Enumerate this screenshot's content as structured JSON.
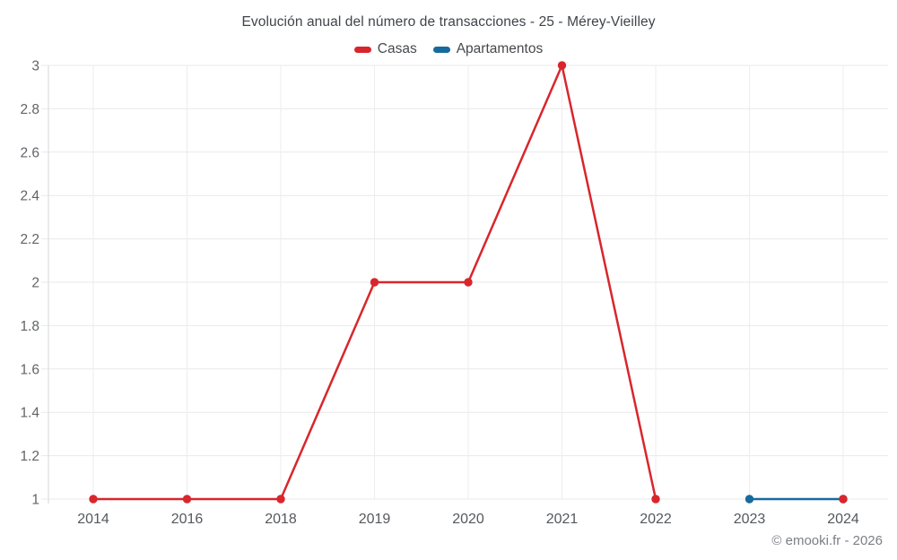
{
  "chart_data": {
    "type": "line",
    "title": "Evolución anual del número de transacciones - 25 - Mérey-Vieilley",
    "categories": [
      "2014",
      "2016",
      "2018",
      "2019",
      "2020",
      "2021",
      "2022",
      "2023",
      "2024"
    ],
    "series": [
      {
        "name": "Casas",
        "color": "#d8262c",
        "values": [
          1,
          1,
          1,
          2,
          2,
          3,
          1,
          null,
          1
        ]
      },
      {
        "name": "Apartamentos",
        "color": "#176a9e",
        "values": [
          null,
          null,
          null,
          null,
          null,
          null,
          null,
          1,
          1
        ]
      }
    ],
    "ylim": [
      1,
      3
    ],
    "yticks": [
      1,
      1.2,
      1.4,
      1.6,
      1.8,
      2,
      2.2,
      2.4,
      2.6,
      2.8,
      3
    ],
    "ytick_labels": [
      "1",
      "1.2",
      "1.4",
      "1.6",
      "1.8",
      "2",
      "2.2",
      "2.4",
      "2.6",
      "2.8",
      "3"
    ],
    "xlabel": "",
    "ylabel": "",
    "grid": true,
    "legend_position": "top",
    "marker_radius": 4.7,
    "line_width": 2.5
  },
  "footer": {
    "text": "© emooki.fr - 2026"
  },
  "colors": {
    "background": "#ffffff",
    "grid_h": "#e9e9e9",
    "grid_v": "#ededed",
    "axis": "#d7d7d7",
    "y_tick_label": "#606468",
    "x_tick_label": "#55585c",
    "title": "#404449",
    "legend_text": "#46494c",
    "footer_text": "#7b7f84",
    "casas": "#d8262c",
    "apartamentos": "#176a9e"
  }
}
